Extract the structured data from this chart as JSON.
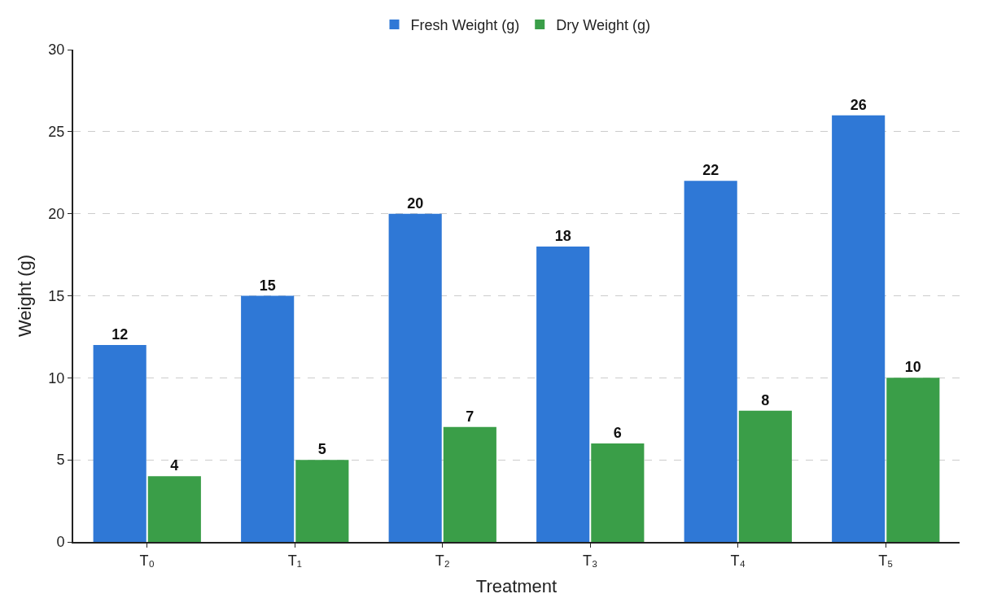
{
  "chart_data": {
    "type": "bar",
    "xlabel": "Treatment",
    "ylabel": "Weight (g)",
    "categories": [
      "T₀",
      "T₁",
      "T₂",
      "T₃",
      "T₄",
      "T₅"
    ],
    "series": [
      {
        "name": "Fresh Weight (g)",
        "color": "#2f78d6",
        "values": [
          12,
          15,
          20,
          18,
          22,
          26
        ]
      },
      {
        "name": "Dry Weight (g)",
        "color": "#3a9e48",
        "values": [
          4,
          5,
          7,
          6,
          8,
          10
        ]
      }
    ],
    "ylim": [
      0,
      30
    ],
    "yticks": [
      0,
      5,
      10,
      15,
      20,
      25,
      30
    ],
    "grid": "y",
    "legend": "top",
    "data_labels": true
  }
}
